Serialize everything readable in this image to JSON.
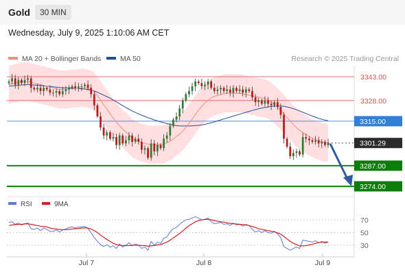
{
  "header": {
    "asset": "Gold",
    "timeframe": "30 MIN",
    "datetime": "Wednesday, July 9, 2025 1:10:06 AM CET"
  },
  "legend": {
    "bollinger_label": "MA 20 + Bollinger Bands",
    "ma50_label": "MA 50",
    "credit": "Research © 2025 Trading Central"
  },
  "colors": {
    "candle_up": "#2e7d32",
    "candle_down": "#b71c1c",
    "bollinger": "#f28b82",
    "band_fill": "#ffd9d9",
    "ma50": "#1f4e9c",
    "resistance": "#ef6c6c",
    "pivot": "#4a90d9",
    "support": "#0a8a0a",
    "rsi": "#5b7bd5",
    "rsi_ma": "#d21f1f",
    "forecast_arrow": "#2e5d9c"
  },
  "chart_data": [
    {
      "type": "candlestick",
      "title": "Gold",
      "timeframe": "30 MIN",
      "x_ticks": [
        "Jul 7",
        "Jul 8",
        "Jul 9"
      ],
      "ylim": [
        3262,
        3355
      ],
      "levels": [
        {
          "value": 3343.0,
          "label": "3343.00",
          "kind": "resistance"
        },
        {
          "value": 3328.0,
          "label": "3328.00",
          "kind": "resistance"
        },
        {
          "value": 3315.0,
          "label": "3315.00",
          "kind": "pivot"
        },
        {
          "value": 3301.29,
          "label": "3301.29",
          "kind": "last"
        },
        {
          "value": 3287.0,
          "label": "3287.00",
          "kind": "support"
        },
        {
          "value": 3274.0,
          "label": "3274.00",
          "kind": "support"
        }
      ],
      "forecast": {
        "from": 3301.29,
        "to": 3274.0,
        "direction": "down"
      },
      "closes": [
        3340,
        3342,
        3338,
        3341,
        3339,
        3341,
        3342,
        3336,
        3335,
        3336,
        3334,
        3336,
        3335,
        3333,
        3333,
        3334,
        3332,
        3334,
        3335,
        3336,
        3337,
        3336,
        3337,
        3337,
        3338,
        3336,
        3332,
        3325,
        3318,
        3311,
        3306,
        3308,
        3304,
        3305,
        3300,
        3306,
        3301,
        3303,
        3306,
        3302,
        3304,
        3302,
        3297,
        3298,
        3292,
        3301,
        3296,
        3300,
        3298,
        3304,
        3306,
        3312,
        3316,
        3318,
        3323,
        3328,
        3332,
        3334,
        3337,
        3340,
        3339,
        3337,
        3338,
        3340,
        3336,
        3334,
        3335,
        3336,
        3334,
        3335,
        3333,
        3336,
        3334,
        3335,
        3333,
        3335,
        3334,
        3330,
        3327,
        3328,
        3326,
        3328,
        3326,
        3325,
        3327,
        3324,
        3319,
        3304,
        3299,
        3293,
        3295,
        3296,
        3294,
        3305,
        3304,
        3303,
        3302,
        3303,
        3301,
        3302,
        3300,
        3301.29
      ],
      "ma20": [
        3338,
        3338.5,
        3339,
        3339.5,
        3340,
        3340,
        3340,
        3339.5,
        3339,
        3338.5,
        3338,
        3337.5,
        3337,
        3336.5,
        3336,
        3335.5,
        3335,
        3335,
        3335,
        3335.2,
        3335.5,
        3335.6,
        3335.8,
        3336,
        3336,
        3335.5,
        3335,
        3333.5,
        3331,
        3328.3,
        3325.2,
        3322.8,
        3319.6,
        3317,
        3314.3,
        3312.3,
        3310,
        3308.3,
        3306.5,
        3304.4,
        3303.1,
        3302.4,
        3301.4,
        3301.2,
        3300.4,
        3300.3,
        3300,
        3300.3,
        3300.2,
        3300.6,
        3301.4,
        3302.6,
        3303.6,
        3305.5,
        3306.7,
        3308.8,
        3311,
        3313.7,
        3316.3,
        3319.1,
        3321.9,
        3324.5,
        3326.4,
        3328.1,
        3329.7,
        3330.7,
        3331.1,
        3331.8,
        3332.4,
        3332.6,
        3332.5,
        3332.7,
        3332.6,
        3332.6,
        3332.2,
        3331.8,
        3331.4,
        3331,
        3330.5,
        3330.1,
        3329.7,
        3329.3,
        3328.6,
        3327.3,
        3325.5,
        3323.7,
        3321.8,
        3319.5,
        3317.3,
        3315.1,
        3312.9,
        3311,
        3309.2,
        3307.9,
        3306.6,
        3305.4,
        3304.3,
        3303.4,
        3302.7,
        3302,
        3301.6,
        3301.3
      ],
      "ma50": [
        3337,
        3337.2,
        3337.4,
        3337.6,
        3337.8,
        3338,
        3338,
        3338,
        3337.8,
        3337.6,
        3337.4,
        3337.2,
        3337,
        3336.8,
        3336.6,
        3336.4,
        3336.2,
        3336,
        3336,
        3336,
        3336,
        3335.8,
        3335.6,
        3335.4,
        3335.2,
        3335,
        3334.6,
        3334,
        3333.2,
        3332.3,
        3331.4,
        3330.5,
        3329.5,
        3328.4,
        3327.2,
        3326,
        3324.8,
        3323.6,
        3322.5,
        3321.5,
        3320.5,
        3319.6,
        3318.8,
        3318,
        3317.2,
        3316.5,
        3315.8,
        3315.2,
        3314.6,
        3314,
        3313.5,
        3313,
        3312.5,
        3312.2,
        3312,
        3312,
        3312,
        3312,
        3312.1,
        3312.2,
        3312.4,
        3312.7,
        3313,
        3313.5,
        3314,
        3314.6,
        3315.2,
        3315.8,
        3316.4,
        3317,
        3317.6,
        3318.2,
        3318.8,
        3319.4,
        3320,
        3320.6,
        3321.2,
        3321.8,
        3322.3,
        3322.8,
        3323.2,
        3323.6,
        3324,
        3324.3,
        3324.5,
        3324.6,
        3324.6,
        3324.4,
        3324,
        3323.5,
        3322.9,
        3322.2,
        3321.4,
        3320.6,
        3319.8,
        3319,
        3318.2,
        3317.5,
        3316.8,
        3316.2,
        3315.7,
        3315.3
      ]
    },
    {
      "type": "line",
      "title": "RSI",
      "series_names": [
        "RSI",
        "9MA"
      ],
      "ylim": [
        20,
        80
      ],
      "y_ticks": [
        70,
        50,
        30
      ],
      "rsi": [
        66,
        67,
        63,
        65,
        62,
        64,
        65,
        56,
        55,
        57,
        53,
        57,
        55,
        52,
        52,
        54,
        51,
        54,
        56,
        58,
        59,
        57,
        59,
        59,
        60,
        56,
        50,
        42,
        36,
        31,
        28,
        31,
        27,
        29,
        25,
        32,
        27,
        30,
        34,
        29,
        32,
        30,
        25,
        27,
        22,
        36,
        30,
        35,
        33,
        41,
        43,
        51,
        56,
        58,
        63,
        67,
        70,
        71,
        73,
        75,
        73,
        70,
        71,
        73,
        67,
        64,
        65,
        66,
        63,
        64,
        61,
        65,
        62,
        63,
        60,
        63,
        61,
        55,
        51,
        53,
        50,
        53,
        50,
        49,
        52,
        48,
        42,
        28,
        25,
        22,
        25,
        27,
        25,
        38,
        37,
        36,
        35,
        37,
        34,
        36,
        33,
        35
      ],
      "rsi_ma": [
        61,
        62,
        62.5,
        63,
        63,
        63.5,
        64,
        63,
        62,
        61,
        60,
        59.5,
        59,
        57,
        56,
        55.5,
        55,
        54.5,
        54.5,
        55,
        55.5,
        56,
        56.5,
        57,
        57.5,
        57,
        55.5,
        53,
        50,
        46,
        42.5,
        39,
        36,
        33,
        31,
        30,
        29.5,
        29.5,
        29.5,
        30,
        30,
        30,
        29.5,
        29.5,
        28.5,
        29,
        29.5,
        30.5,
        31,
        33,
        35,
        38,
        41.5,
        45,
        48.5,
        52.5,
        57,
        61,
        64,
        67,
        69,
        70,
        70.5,
        71,
        70,
        69,
        68,
        67,
        66.5,
        65.5,
        64.5,
        64,
        63.5,
        63,
        62.5,
        62,
        61,
        59.5,
        58,
        56,
        55,
        54,
        53,
        52,
        51,
        49.5,
        47.5,
        44,
        40,
        36,
        33,
        31,
        29,
        29,
        29.5,
        30.5,
        31.5,
        33,
        34,
        35,
        35,
        35
      ]
    }
  ]
}
